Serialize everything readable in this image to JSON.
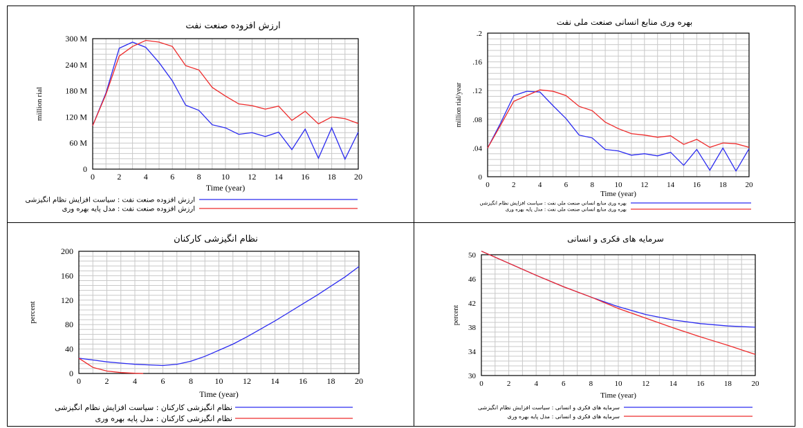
{
  "colors": {
    "series_blue": "#2b2bf0",
    "series_red": "#ee2a2a",
    "grid": "#c8c8c8",
    "frame": "#000000"
  },
  "chart_data": [
    {
      "id": "p1",
      "type": "line",
      "title": "ارزش افزوده صنعت نفت",
      "xlabel": "Time (year)",
      "ylabel": "million rial",
      "xlim": [
        0,
        20
      ],
      "ylim": [
        0,
        300
      ],
      "xticks": [
        0,
        2,
        4,
        6,
        8,
        10,
        12,
        14,
        16,
        18,
        20
      ],
      "yticks": [
        0,
        60,
        120,
        180,
        240,
        300
      ],
      "ytick_labels": [
        "0",
        "60 M",
        "120 M",
        "180 M",
        "240 M",
        "300 M"
      ],
      "series": [
        {
          "name": "ارزش افزوده صنعت نفت : سیاست افزایش نظام انگیزشی",
          "color": "#2b2bf0",
          "x": [
            0,
            1,
            2,
            3,
            4,
            5,
            6,
            7,
            8,
            9,
            10,
            11,
            12,
            13,
            14,
            15,
            16,
            17,
            18,
            19,
            20
          ],
          "y": [
            100,
            175,
            278,
            292,
            280,
            245,
            203,
            147,
            135,
            102,
            95,
            80,
            84,
            75,
            85,
            45,
            92,
            25,
            95,
            23,
            85
          ]
        },
        {
          "name": "ارزش افزوده صنعت نفت : مدل پایه بهره وری",
          "color": "#ee2a2a",
          "x": [
            0,
            1,
            2,
            3,
            4,
            5,
            6,
            7,
            8,
            9,
            10,
            11,
            12,
            13,
            14,
            15,
            16,
            17,
            18,
            19,
            20
          ],
          "y": [
            100,
            172,
            260,
            282,
            296,
            292,
            282,
            238,
            228,
            188,
            168,
            150,
            146,
            138,
            145,
            112,
            133,
            104,
            120,
            116,
            105
          ]
        }
      ]
    },
    {
      "id": "p2",
      "type": "line",
      "title": "بهره وری منابع انسانی صنعت ملی نفت",
      "xlabel": "Time (year)",
      "ylabel": "million rial/year",
      "xlim": [
        0,
        20
      ],
      "ylim": [
        0,
        0.2
      ],
      "xticks": [
        0,
        2,
        4,
        6,
        8,
        10,
        12,
        14,
        16,
        18,
        20
      ],
      "yticks": [
        0,
        0.04,
        0.08,
        0.12,
        0.16,
        0.2
      ],
      "ytick_labels": [
        "0",
        ".04",
        ".08",
        ".12",
        ".16",
        ".2"
      ],
      "series": [
        {
          "name": "بهره وری منابع انسانی صنعت ملی نفت : سیاست افزایش نظام انگیزشی",
          "color": "#2b2bf0",
          "x": [
            0,
            1,
            2,
            3,
            4,
            5,
            6,
            7,
            8,
            9,
            10,
            11,
            12,
            13,
            14,
            15,
            16,
            17,
            18,
            19,
            20
          ],
          "y": [
            0.04,
            0.075,
            0.113,
            0.119,
            0.118,
            0.099,
            0.081,
            0.058,
            0.054,
            0.038,
            0.036,
            0.03,
            0.032,
            0.029,
            0.034,
            0.016,
            0.038,
            0.009,
            0.04,
            0.008,
            0.039
          ]
        },
        {
          "name": "بهره وری منابع انسانی صنعت ملی نفت : مدل پایه بهره وری",
          "color": "#ee2a2a",
          "x": [
            0,
            1,
            2,
            3,
            4,
            5,
            6,
            7,
            8,
            9,
            10,
            11,
            12,
            13,
            14,
            15,
            16,
            17,
            18,
            19,
            20
          ],
          "y": [
            0.04,
            0.072,
            0.105,
            0.113,
            0.121,
            0.119,
            0.113,
            0.098,
            0.092,
            0.076,
            0.067,
            0.06,
            0.058,
            0.055,
            0.057,
            0.045,
            0.052,
            0.041,
            0.047,
            0.046,
            0.041
          ]
        }
      ]
    },
    {
      "id": "p3",
      "type": "line",
      "title": "نظام انگیزشی کارکنان",
      "xlabel": "Time (year)",
      "ylabel": "percent",
      "xlim": [
        0,
        20
      ],
      "ylim": [
        0,
        200
      ],
      "xticks": [
        0,
        2,
        4,
        6,
        8,
        10,
        12,
        14,
        16,
        18,
        20
      ],
      "yticks": [
        0,
        40,
        80,
        120,
        160,
        200
      ],
      "ytick_labels": [
        "0",
        "40",
        "80",
        "120",
        "160",
        "200"
      ],
      "series": [
        {
          "name": "نظام انگیزشی کارکنان : سیاست افزایش نظام انگیزشی",
          "color": "#2b2bf0",
          "x": [
            0,
            1,
            2,
            3,
            4,
            5,
            6,
            7,
            8,
            9,
            10,
            11,
            12,
            13,
            14,
            15,
            16,
            17,
            18,
            19,
            20
          ],
          "y": [
            25,
            22,
            19,
            17,
            15,
            14,
            13,
            15,
            20,
            28,
            38,
            48,
            60,
            73,
            86,
            100,
            114,
            128,
            143,
            158,
            175
          ]
        },
        {
          "name": "نظام انگیزشی کارکنان : مدل پایه بهره وری",
          "color": "#ee2a2a",
          "x": [
            0,
            1,
            2,
            3,
            4,
            4.6
          ],
          "y": [
            25,
            10,
            4,
            1.5,
            0.3,
            0
          ]
        }
      ]
    },
    {
      "id": "p4",
      "type": "line",
      "title": "سرمایه های فکری و انسانی",
      "xlabel": "Time (year)",
      "ylabel": "percent",
      "xlim": [
        0,
        20
      ],
      "ylim": [
        30,
        50
      ],
      "xticks": [
        0,
        2,
        4,
        6,
        8,
        10,
        12,
        14,
        16,
        18,
        20
      ],
      "yticks": [
        30,
        34,
        38,
        42,
        46,
        50
      ],
      "ytick_labels": [
        "30",
        "34",
        "38",
        "42",
        "46",
        "50"
      ],
      "series": [
        {
          "name": "سرمایه های فکری و انسانی : سیاست افزایش نظام انگیزشی",
          "color": "#2b2bf0",
          "x": [
            0,
            2,
            4,
            6,
            8,
            10,
            12,
            14,
            16,
            18,
            20
          ],
          "y": [
            50.6,
            48.6,
            46.6,
            44.7,
            43.0,
            41.4,
            40.1,
            39.2,
            38.6,
            38.2,
            38.0
          ]
        },
        {
          "name": "سرمایه های فکری و انسانی : مدل پایه بهره وری",
          "color": "#ee2a2a",
          "x": [
            0,
            2,
            4,
            6,
            8,
            10,
            12,
            14,
            16,
            18,
            20
          ],
          "y": [
            50.6,
            48.6,
            46.6,
            44.7,
            43.0,
            41.1,
            39.5,
            37.9,
            36.4,
            35.0,
            33.5
          ]
        }
      ]
    }
  ]
}
